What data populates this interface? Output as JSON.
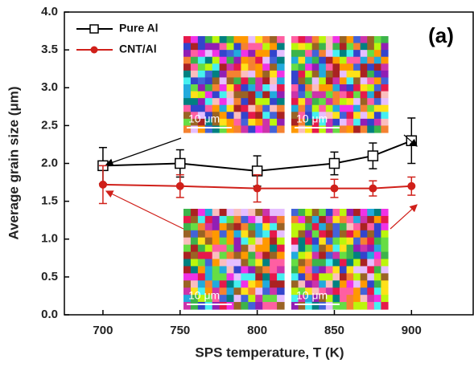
{
  "chart_data": {
    "type": "errorbar-line",
    "xlabel": "SPS temperature, T (K)",
    "ylabel": "Average grain size (μm)",
    "annotation": "(a)",
    "inset_scale_labels": [
      "10 μm",
      "10 μm",
      "10 μm",
      "10 μm"
    ],
    "x": [
      700,
      750,
      800,
      850,
      875,
      900
    ],
    "series": [
      {
        "name": "Pure Al",
        "color": "#000000",
        "marker": "open-square",
        "values": [
          1.97,
          2.0,
          1.9,
          2.0,
          2.1,
          2.3
        ],
        "errors": [
          0.24,
          0.18,
          0.2,
          0.15,
          0.17,
          0.3
        ]
      },
      {
        "name": "CNT/Al",
        "color": "#d0201a",
        "marker": "filled-circle",
        "values": [
          1.72,
          1.7,
          1.67,
          1.67,
          1.67,
          1.7
        ],
        "errors": [
          0.25,
          0.15,
          0.18,
          0.12,
          0.1,
          0.12
        ]
      }
    ],
    "xlim": [
      675,
      940
    ],
    "xticks": [
      700,
      750,
      800,
      850,
      900
    ],
    "ylim": [
      0,
      4.0
    ],
    "yticks": [
      {
        "value": 0,
        "label": "0.0"
      },
      0.5,
      {
        "value": 1,
        "label": "1.0"
      },
      1.5,
      {
        "value": 2,
        "label": "2.0"
      },
      2.5,
      {
        "value": 3,
        "label": "3.0"
      },
      3.5,
      {
        "value": 4,
        "label": "4.0"
      }
    ],
    "grid": false,
    "legend": "upper left"
  }
}
